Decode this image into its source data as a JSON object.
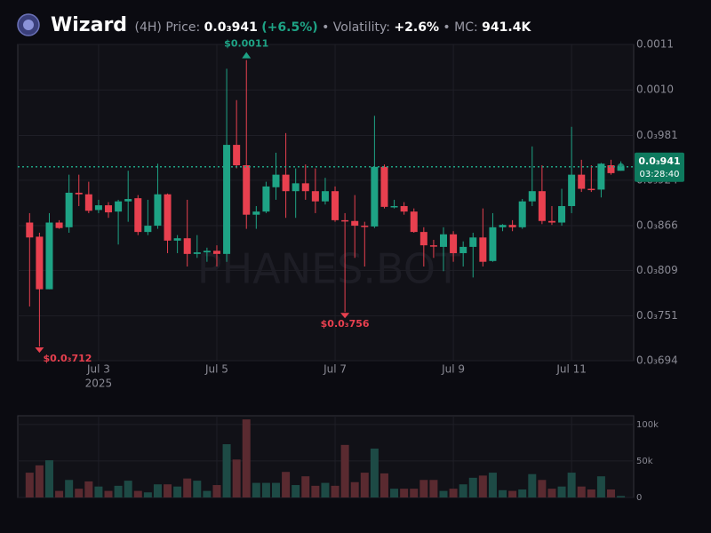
{
  "header": {
    "name": "Wizard",
    "interval": "(4H)",
    "price_label": "Price:",
    "price": "0.0₃941",
    "change": "(+6.5%)",
    "volatility_label": "• Volatility:",
    "volatility": "+2.6%",
    "mc_label": "• MC:",
    "mc": "941.4K"
  },
  "chart_data": {
    "type": "candlestick",
    "x": [
      0,
      1,
      2,
      3,
      4,
      5,
      6,
      7,
      8,
      9,
      10,
      11,
      12,
      13,
      14,
      15,
      16,
      17,
      18,
      19,
      20,
      21,
      22,
      23,
      24,
      25,
      26,
      27,
      28,
      29,
      30,
      31,
      32,
      33,
      34,
      35,
      36,
      37,
      38,
      39,
      40,
      41,
      42,
      43,
      44,
      45,
      46,
      47,
      48,
      49,
      50,
      51,
      52,
      53,
      54,
      55,
      56,
      57,
      58,
      59,
      60
    ],
    "open": [
      0.00087,
      0.000852,
      0.000785,
      0.00087,
      0.000864,
      0.000908,
      0.000906,
      0.000886,
      0.000892,
      0.000884,
      0.000897,
      0.000901,
      0.000858,
      0.000866,
      0.000906,
      0.000847,
      0.00085,
      0.00083,
      0.000832,
      0.000834,
      0.00083,
      0.000969,
      0.000943,
      0.00088,
      0.000884,
      0.000915,
      0.000931,
      0.00091,
      0.00092,
      0.00091,
      0.000897,
      0.00091,
      0.000873,
      0.000872,
      0.000866,
      0.000865,
      0.000941,
      0.00089,
      0.000891,
      0.000884,
      0.000858,
      0.000841,
      0.000839,
      0.000855,
      0.000831,
      0.000839,
      0.000851,
      0.000821,
      0.000864,
      0.000867,
      0.000864,
      0.000897,
      0.00091,
      0.000872,
      0.00087,
      0.000891,
      0.000931,
      0.000913,
      0.000912,
      0.000943,
      0.000936
    ],
    "high": [
      0.000882,
      0.000857,
      0.000882,
      0.000873,
      0.000931,
      0.000931,
      0.000922,
      0.000899,
      0.000896,
      0.000899,
      0.000936,
      0.000905,
      0.000899,
      0.000945,
      0.000907,
      0.000854,
      0.000899,
      0.000854,
      0.000838,
      0.000841,
      0.001066,
      0.001026,
      0.001077,
      0.000891,
      0.000922,
      0.000959,
      0.000984,
      0.000939,
      0.000944,
      0.000939,
      0.000927,
      0.000916,
      0.000882,
      0.000905,
      0.000871,
      0.001006,
      0.000944,
      0.000899,
      0.000896,
      0.000888,
      0.000864,
      0.000848,
      0.000864,
      0.000859,
      0.000846,
      0.000857,
      0.000888,
      0.000882,
      0.000868,
      0.000873,
      0.0009,
      0.000967,
      0.000943,
      0.000891,
      0.000913,
      0.000992,
      0.00095,
      0.000943,
      0.000946,
      0.00095,
      0.000948
    ],
    "low": [
      0.000763,
      0.000712,
      0.000785,
      0.000862,
      0.000857,
      0.000891,
      0.000882,
      0.000882,
      0.000876,
      0.000842,
      0.000871,
      0.000854,
      0.000854,
      0.000862,
      0.000831,
      0.000831,
      0.000814,
      0.000825,
      0.00082,
      0.000814,
      0.00082,
      0.000939,
      0.000862,
      0.000862,
      0.000882,
      0.000899,
      0.000876,
      0.000876,
      0.000899,
      0.000882,
      0.000893,
      0.000871,
      0.000756,
      0.000825,
      0.000814,
      0.000863,
      0.000888,
      0.000888,
      0.00088,
      0.000857,
      0.000814,
      0.000825,
      0.000808,
      0.00082,
      0.000814,
      0.0008,
      0.000814,
      0.00082,
      0.000859,
      0.000859,
      0.000862,
      0.000891,
      0.000868,
      0.000867,
      0.000866,
      0.000882,
      0.000909,
      0.000909,
      0.000902,
      0.000931,
      0.000936
    ],
    "close": [
      0.000851,
      0.000785,
      0.00087,
      0.000863,
      0.000908,
      0.000906,
      0.000885,
      0.000892,
      0.000883,
      0.000897,
      0.0009,
      0.000858,
      0.000866,
      0.000906,
      0.000847,
      0.00085,
      0.00083,
      0.000832,
      0.000834,
      0.00083,
      0.000969,
      0.000943,
      0.00088,
      0.000884,
      0.000916,
      0.000931,
      0.00091,
      0.00092,
      0.00091,
      0.000897,
      0.00091,
      0.000873,
      0.000872,
      0.000866,
      0.000865,
      0.000941,
      0.00089,
      0.000891,
      0.000884,
      0.000858,
      0.000841,
      0.00084,
      0.000855,
      0.000831,
      0.000839,
      0.000851,
      0.00082,
      0.000864,
      0.000867,
      0.000864,
      0.000897,
      0.00091,
      0.000872,
      0.00087,
      0.000891,
      0.000931,
      0.000913,
      0.000912,
      0.000945,
      0.000933,
      0.000941
    ],
    "up_color": "#1ea385",
    "down_color": "#e8404f",
    "xlim": [
      -1.2,
      61.3
    ],
    "xticks": [
      {
        "value": 7,
        "label": "Jul 3"
      },
      {
        "value": 19,
        "label": "Jul 5"
      },
      {
        "value": 31,
        "label": "Jul 7"
      },
      {
        "value": 43,
        "label": "Jul 9"
      },
      {
        "value": 55,
        "label": "Jul 11"
      }
    ],
    "x_sublabel": "2025",
    "ylim": [
      0.000694,
      0.001097
    ],
    "yticks": [
      {
        "value": 0.000694,
        "label": "0.0₃694"
      },
      {
        "value": 0.000751,
        "label": "0.0₃751"
      },
      {
        "value": 0.000809,
        "label": "0.0₃809"
      },
      {
        "value": 0.000866,
        "label": "0.0₃866"
      },
      {
        "value": 0.000924,
        "label": "0.0₃924"
      },
      {
        "value": 0.000981,
        "label": "0.0₃981"
      },
      {
        "value": 0.001039,
        "label": "0.0010"
      },
      {
        "value": 0.001097,
        "label": "0.0011"
      }
    ],
    "grid": true,
    "current_price": {
      "value": 0.000941,
      "label": "0.0₃941",
      "time": "03:28:40",
      "color": "#0e7a5e"
    },
    "annotations": [
      {
        "x": 22,
        "value": 0.001077,
        "label": "$0.0011",
        "color": "#1ea385"
      },
      {
        "x": 32,
        "value": 0.000756,
        "label": "$0.0₃756",
        "color": "#e8404f"
      },
      {
        "x": 1,
        "value": 0.000712,
        "label": "$0.0₃712",
        "color": "#e8404f"
      }
    ],
    "watermark": "PHANES.BOT",
    "volume": {
      "values": [
        34000,
        44000,
        51000,
        9000,
        24000,
        12000,
        22000,
        15000,
        9000,
        16000,
        23000,
        9000,
        7000,
        18000,
        18000,
        15000,
        26000,
        23000,
        9000,
        17000,
        73000,
        52000,
        107000,
        20000,
        20000,
        20000,
        35000,
        17000,
        29000,
        16000,
        20000,
        16000,
        72000,
        21000,
        34000,
        67000,
        33000,
        12000,
        12000,
        12000,
        24000,
        24000,
        9000,
        12000,
        18000,
        27000,
        30000,
        34000,
        10000,
        9000,
        11000,
        32000,
        24000,
        12000,
        15000,
        34000,
        15000,
        11000,
        29000,
        11000,
        2000
      ],
      "up_color": "#1d4a45",
      "down_color": "#5a2a30",
      "ylim": [
        0,
        112000
      ],
      "yticks": [
        0,
        {
          "value": 50000,
          "label": "50k"
        },
        {
          "value": 100000,
          "label": "100k"
        }
      ]
    }
  }
}
